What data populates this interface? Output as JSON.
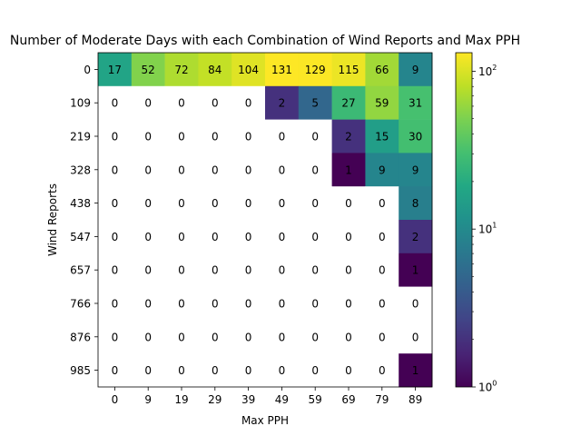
{
  "chart_data": {
    "type": "heatmap",
    "title": "Number of Moderate Days with each Combination of Wind Reports and Max PPH",
    "xlabel": "Max PPH",
    "ylabel": "Wind Reports",
    "x_ticks": [
      "0",
      "9",
      "19",
      "29",
      "39",
      "49",
      "59",
      "69",
      "79",
      "89"
    ],
    "y_ticks": [
      "0",
      "109",
      "219",
      "328",
      "438",
      "547",
      "657",
      "766",
      "876",
      "985"
    ],
    "values": [
      [
        17,
        52,
        72,
        84,
        104,
        131,
        129,
        115,
        66,
        9
      ],
      [
        0,
        0,
        0,
        0,
        0,
        2,
        5,
        27,
        59,
        31
      ],
      [
        0,
        0,
        0,
        0,
        0,
        0,
        0,
        2,
        15,
        30
      ],
      [
        0,
        0,
        0,
        0,
        0,
        0,
        0,
        1,
        9,
        9
      ],
      [
        0,
        0,
        0,
        0,
        0,
        0,
        0,
        0,
        0,
        8
      ],
      [
        0,
        0,
        0,
        0,
        0,
        0,
        0,
        0,
        0,
        2
      ],
      [
        0,
        0,
        0,
        0,
        0,
        0,
        0,
        0,
        0,
        1
      ],
      [
        0,
        0,
        0,
        0,
        0,
        0,
        0,
        0,
        0,
        0
      ],
      [
        0,
        0,
        0,
        0,
        0,
        0,
        0,
        0,
        0,
        0
      ],
      [
        0,
        0,
        0,
        0,
        0,
        0,
        0,
        0,
        0,
        1
      ]
    ],
    "color_scale": "log",
    "colormap": "viridis",
    "zero_color": "#ffffff",
    "colorbar": {
      "range": [
        1,
        131
      ],
      "tick_labels": [
        {
          "value": 1,
          "base": "10",
          "exp": "0"
        },
        {
          "value": 10,
          "base": "10",
          "exp": "1"
        },
        {
          "value": 100,
          "base": "10",
          "exp": "2"
        }
      ]
    },
    "grid": false
  }
}
